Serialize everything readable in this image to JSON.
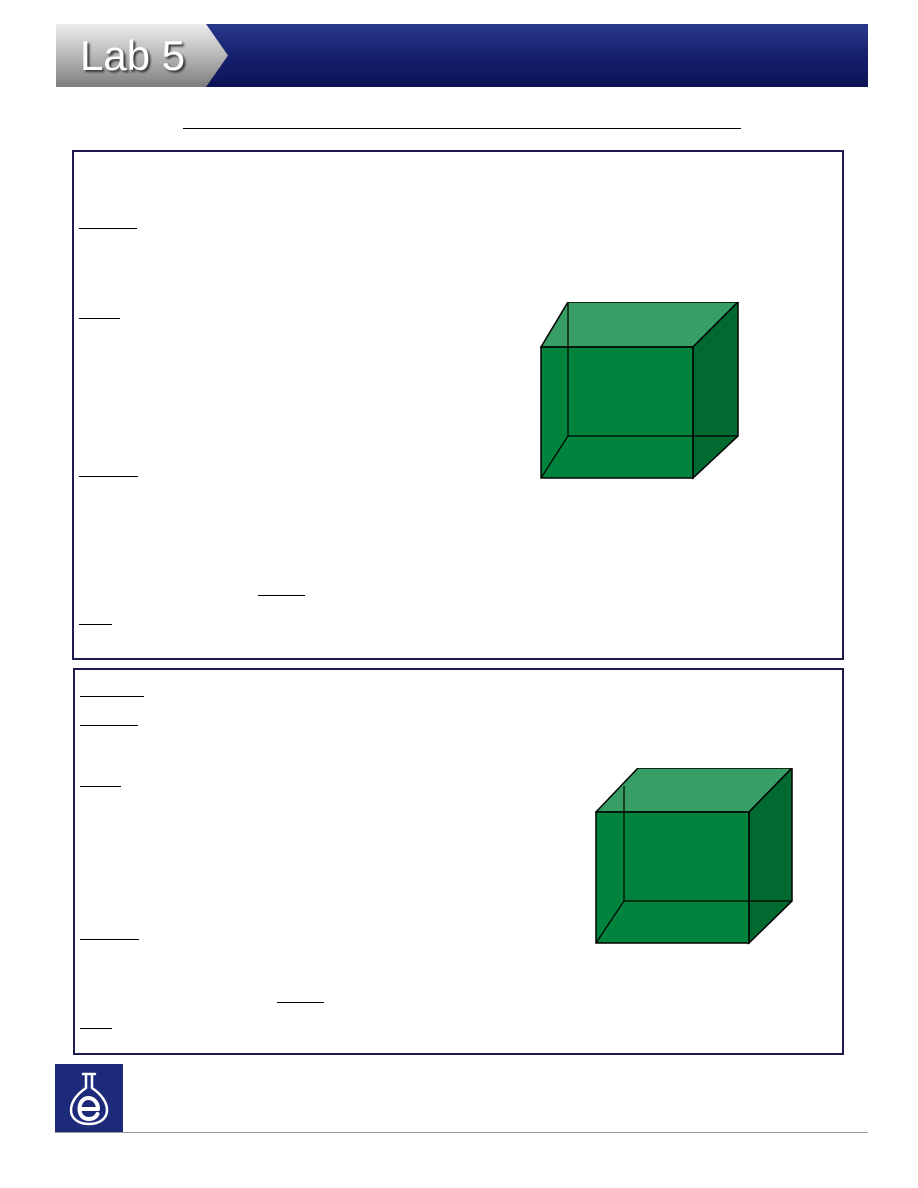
{
  "header": {
    "title": "Lab 5"
  },
  "colors": {
    "header_dark": "#0f1660",
    "header_mid": "#283a8a",
    "tab_light": "#e0e0e0",
    "tab_dark": "#8a8a8a",
    "box_border": "#1c1c4e",
    "cube_front": "#00843d",
    "cube_top": "#379e66",
    "cube_side": "#006a31",
    "logo_bg": "#1d2a7a"
  },
  "icons": {
    "logo": "flask-e-icon"
  }
}
